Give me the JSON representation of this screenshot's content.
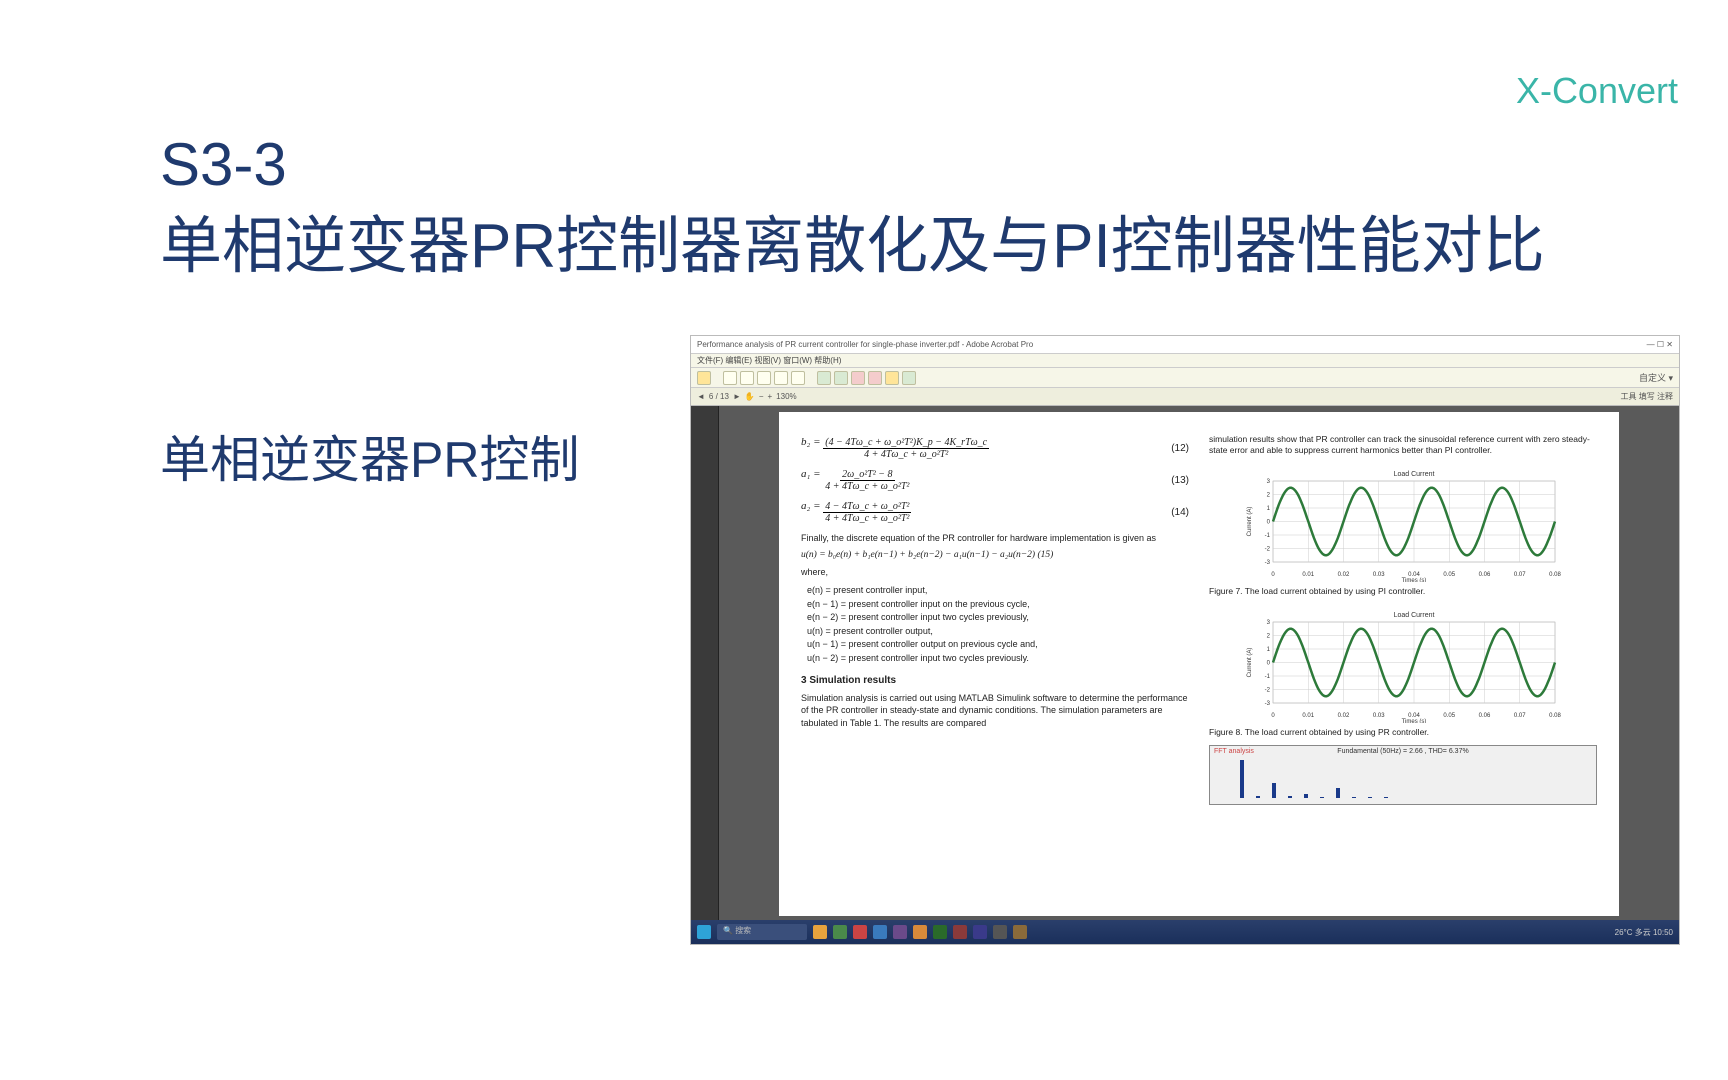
{
  "brand": "X-Convert",
  "slide_num": "S3-3",
  "title": "单相逆变器PR控制器离散化及与PI控制器性能对比",
  "subtitle": "单相逆变器PR控制",
  "shot": {
    "window_title": "Performance analysis of PR current controller for single-phase inverter.pdf - Adobe Acrobat Pro",
    "menubar": "文件(F)  编辑(E)  视图(V)  窗口(W)  帮助(H)",
    "toolbar_right": "自定义 ▾",
    "tools_label": "工具  填写  注释",
    "page_indicator": "6 / 13",
    "zoom": "130%",
    "paper": {
      "intro_r": "simulation results show that PR controller can track the sinusoidal reference current with zero steady-state error and able to suppress current harmonics better than PI controller.",
      "eq12": "(12)",
      "eq12_n": "(4 − 4Tω_c + ω_o²T²)K_p − 4K_rTω_c",
      "eq12_d": "4 + 4Tω_c + ω_o²T²",
      "eq12_lhs": "b₂ =",
      "eq13": "(13)",
      "eq13_n": "2ω_o²T² − 8",
      "eq13_d": "4 + 4Tω_c + ω_o²T²",
      "eq13_lhs": "a₁ =",
      "eq14": "(14)",
      "eq14_n": "4 − 4Tω_c + ω_o²T²",
      "eq14_d": "4 + 4Tω_c + ω_o²T²",
      "eq14_lhs": "a₂ =",
      "para1": "Finally, the discrete equation of the PR controller for hardware implementation is given as",
      "eq15": "u(n) = b₀e(n) + b₁e(n−1) + b₂e(n−2) − a₁u(n−1) − a₂u(n−2)   (15)",
      "where": "where,",
      "w1": "e(n) = present controller input,",
      "w2": "e(n − 1) = present controller input on the previous cycle,",
      "w3": "e(n − 2) = present controller input two cycles previously,",
      "w4": "u(n) = present controller output,",
      "w5": "u(n − 1) = present controller output on previous cycle and,",
      "w6": "u(n − 2) = present controller input two cycles previously.",
      "sec3": "3   Simulation results",
      "para2": "Simulation analysis is carried out using MATLAB Simulink software to determine the performance of the PR controller in steady-state and dynamic conditions. The simulation parameters are tabulated in Table 1. The results are compared",
      "fig7": "Figure 7. The load current obtained by using PI controller.",
      "fig8": "Figure 8. The load current obtained by using PR controller.",
      "chart_title": "Load Current",
      "chart_ylabel": "Current (A)",
      "chart_xlabel": "Times (s)",
      "fft_label": "FFT analysis",
      "fft_title": "Fundamental (50Hz) = 2.66 , THD= 6.37%",
      "chart": {
        "xlim": [
          0,
          0.08
        ],
        "ylim": [
          -3,
          3
        ],
        "xticks": [
          0,
          0.01,
          0.02,
          0.03,
          0.04,
          0.05,
          0.06,
          0.07,
          0.08
        ],
        "yticks": [
          -3,
          -2,
          -1,
          0,
          1,
          2,
          3
        ],
        "line_color": "#2d7a3a",
        "line_width": 2.5,
        "grid_color": "#cccccc",
        "bg": "#ffffff",
        "amplitude": 2.5,
        "cycles": 4
      },
      "fft_bars": [
        100,
        5,
        40,
        4,
        10,
        3,
        25,
        2,
        2,
        2
      ]
    },
    "taskbar": {
      "search_placeholder": "搜索",
      "tray": "26°C 多云   10:50"
    }
  }
}
